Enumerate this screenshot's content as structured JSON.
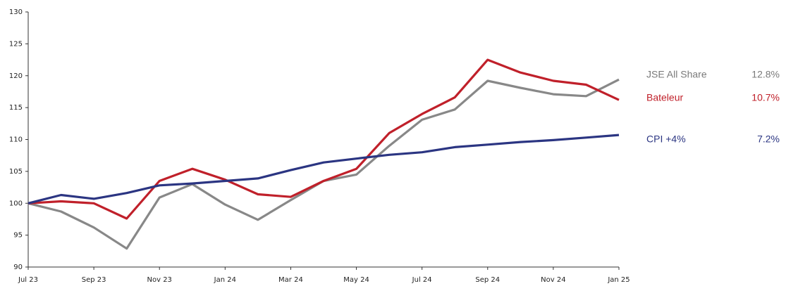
{
  "chart_data": {
    "type": "line",
    "categories": [
      "Jul 23",
      null,
      "Sep 23",
      null,
      "Nov 23",
      null,
      "Jan 24",
      null,
      "Mar 24",
      null,
      "May 24",
      null,
      "Jul 24",
      null,
      "Sep 24",
      null,
      "Nov 24",
      null,
      "Jan 25"
    ],
    "series": [
      {
        "name": "JSE All Share",
        "color": "#888888",
        "text_color": "#7a7a7a",
        "return": 12.8,
        "return_label": "12.8%",
        "values": [
          100,
          98.7,
          96.2,
          92.9,
          100.9,
          103.0,
          99.8,
          97.4,
          100.5,
          103.5,
          104.5,
          109.0,
          113.1,
          114.7,
          119.2,
          118.1,
          117.1,
          116.8,
          119.4
        ]
      },
      {
        "name": "Bateleur",
        "color": "#c0202a",
        "text_color": "#c0202a",
        "return": 10.7,
        "return_label": "10.7%",
        "values": [
          100,
          100.3,
          100.0,
          97.6,
          103.5,
          105.4,
          103.7,
          101.4,
          101.0,
          103.5,
          105.4,
          111.0,
          114.0,
          116.6,
          122.5,
          120.5,
          119.2,
          118.6,
          116.2
        ]
      },
      {
        "name": "CPI +4%",
        "color": "#2b3582",
        "text_color": "#2b3582",
        "return": 7.2,
        "return_label": "7.2%",
        "values": [
          100,
          101.3,
          100.7,
          101.6,
          102.8,
          103.1,
          103.5,
          103.9,
          105.2,
          106.4,
          107.0,
          107.6,
          108.0,
          108.8,
          109.2,
          109.6,
          109.9,
          110.3,
          110.7
        ]
      }
    ],
    "ylim": [
      90,
      130
    ],
    "yticks": [
      90,
      95,
      100,
      105,
      110,
      115,
      120,
      125,
      130
    ]
  }
}
